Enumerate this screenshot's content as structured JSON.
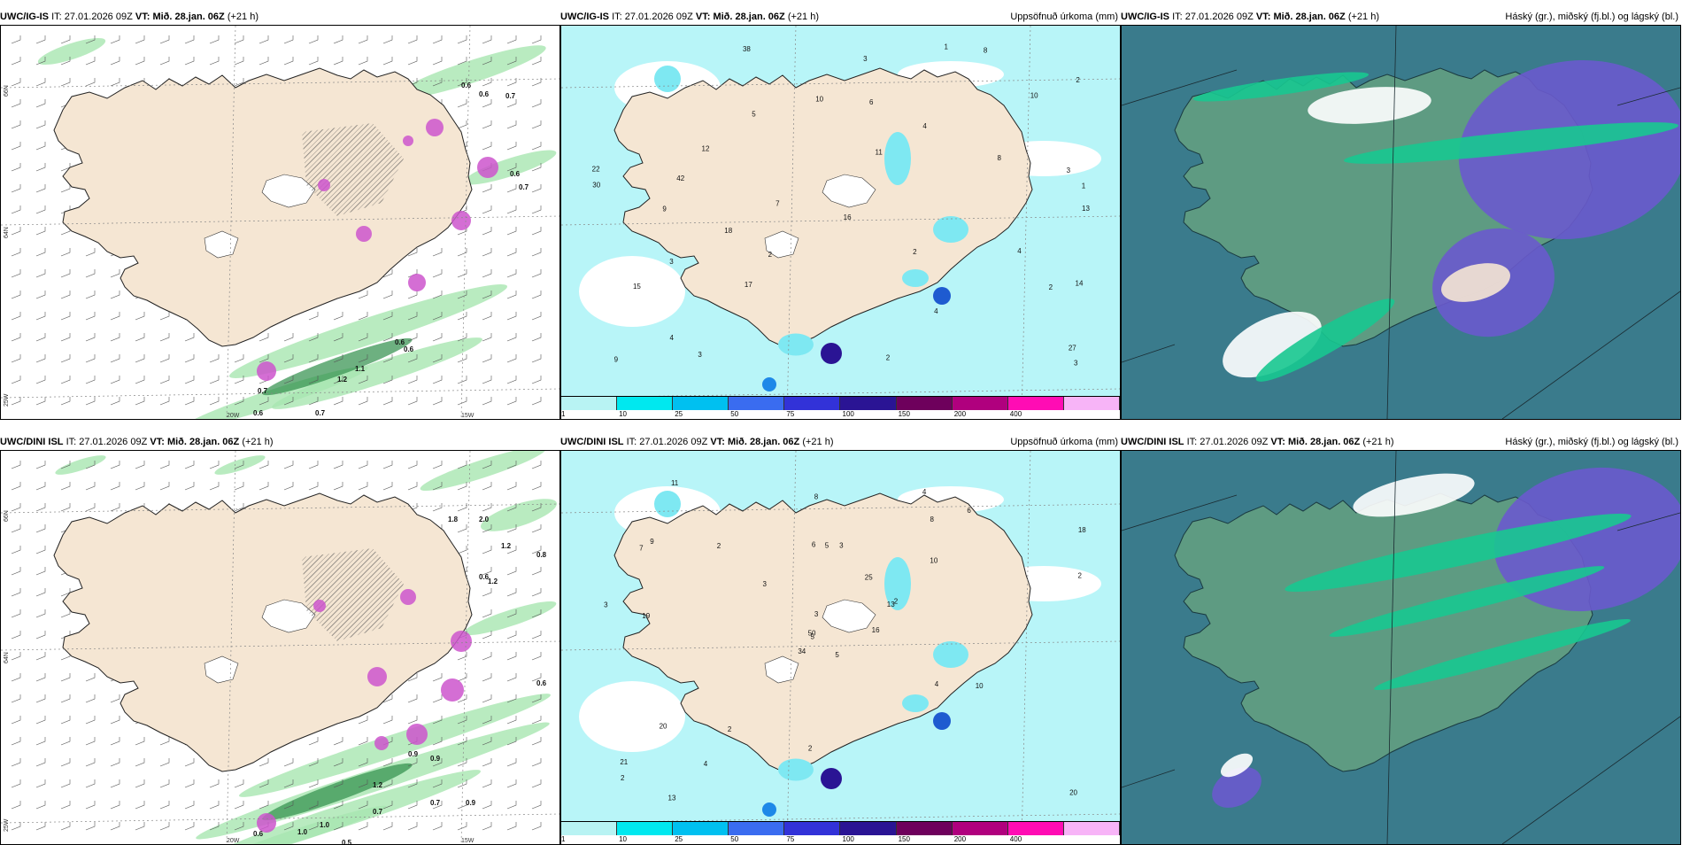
{
  "panels": [
    {
      "model": "UWC/IG-IS",
      "it_label": "IT:",
      "it": "27.01.2026 09Z",
      "vt_label": "VT:",
      "vt": "Mið. 28.jan. 06Z",
      "lead": "(+21 h)",
      "right": "",
      "type": "wind"
    },
    {
      "model": "UWC/IG-IS",
      "it_label": "IT:",
      "it": "27.01.2026 09Z",
      "vt_label": "VT:",
      "vt": "Mið. 28.jan. 06Z",
      "lead": "(+21 h)",
      "right": "Uppsöfnuð úrkoma (mm)",
      "type": "precip"
    },
    {
      "model": "UWC/IG-IS",
      "it_label": "IT:",
      "it": "27.01.2026 09Z",
      "vt_label": "VT:",
      "vt": "Mið. 28.jan. 06Z",
      "lead": "(+21 h)",
      "right": "Háský (gr.), miðský (fj.bl.) og lágský (bl.)",
      "type": "cloud"
    },
    {
      "model": "UWC/DINI ISL",
      "it_label": "IT:",
      "it": "27.01.2026 09Z",
      "vt_label": "VT:",
      "vt": "Mið. 28.jan. 06Z",
      "lead": "(+21 h)",
      "right": "",
      "type": "wind"
    },
    {
      "model": "UWC/DINI ISL",
      "it_label": "IT:",
      "it": "27.01.2026 09Z",
      "vt_label": "VT:",
      "vt": "Mið. 28.jan. 06Z",
      "lead": "(+21 h)",
      "right": "Uppsöfnuð úrkoma (mm)",
      "type": "precip"
    },
    {
      "model": "UWC/DINI ISL",
      "it_label": "IT:",
      "it": "27.01.2026 09Z",
      "vt_label": "VT:",
      "vt": "Mið. 28.jan. 06Z",
      "lead": "(+21 h)",
      "right": "Háský (gr.), miðský (fj.bl.) og lágský (bl.)",
      "type": "cloud"
    }
  ],
  "grid_labels": {
    "lat66": "66N",
    "lat64": "64N",
    "lat62": "25W",
    "lon20": "20W",
    "lon15": "15W",
    "lat65": "65N",
    "lat63": "63N"
  },
  "precip_legend": {
    "ticks": [
      "1",
      "10",
      "25",
      "50",
      "75",
      "100",
      "150",
      "200",
      "400"
    ],
    "colors": [
      "#b8f3f3",
      "#00e8ef",
      "#00c0f0",
      "#3a6cf0",
      "#3232d8",
      "#2a1494",
      "#6e005c",
      "#b0007e",
      "#ff0cb4",
      "#f7b4f7"
    ]
  },
  "colors": {
    "land": "#f5e6d3",
    "sea": "#ffffff",
    "wind_green": "#a8e6b0",
    "wind_dark": "#2f8f4a",
    "precip_light": "#b8f5f8",
    "cloud_sea": "#3a7b8c",
    "cloud_mid": "#2d6e86",
    "cloud_green": "#18c890",
    "cloud_blue": "#6a5acd",
    "cloud_white": "#ffffff",
    "cloud_land": "#5e9b82"
  },
  "wind_values": {
    "a": [
      "0.6",
      "0.6",
      "0.7",
      "0.6",
      "0.7",
      "0.7",
      "1.1",
      "1.2",
      "0.6",
      "0.6",
      "0.7",
      "0.6"
    ],
    "b": [
      "1.8",
      "2.0",
      "1.2",
      "0.8",
      "0.6",
      "0.9",
      "0.9",
      "0.7",
      "0.9",
      "1.2",
      "0.7",
      "1.0",
      "0.6",
      "1.0",
      "0.5",
      "1.2",
      "0.6"
    ]
  },
  "precip_values": {
    "a": [
      "5",
      "3",
      "4",
      "1",
      "7",
      "14",
      "2",
      "1",
      "2",
      "10",
      "12",
      "4",
      "8",
      "17",
      "15",
      "16",
      "18",
      "22",
      "38",
      "10",
      "27",
      "6",
      "4",
      "3",
      "11",
      "8",
      "9",
      "4",
      "2",
      "2",
      "3",
      "3",
      "9",
      "3",
      "42",
      "30",
      "13",
      "2"
    ],
    "b": [
      "5",
      "7",
      "5",
      "21",
      "13",
      "2",
      "4",
      "3",
      "8",
      "16",
      "11",
      "20",
      "19",
      "18",
      "34",
      "10",
      "13",
      "6",
      "25",
      "20",
      "3",
      "2",
      "4",
      "5",
      "2",
      "10",
      "9",
      "8",
      "3",
      "4",
      "2",
      "50",
      "2",
      "3",
      "2",
      "6"
    ]
  }
}
